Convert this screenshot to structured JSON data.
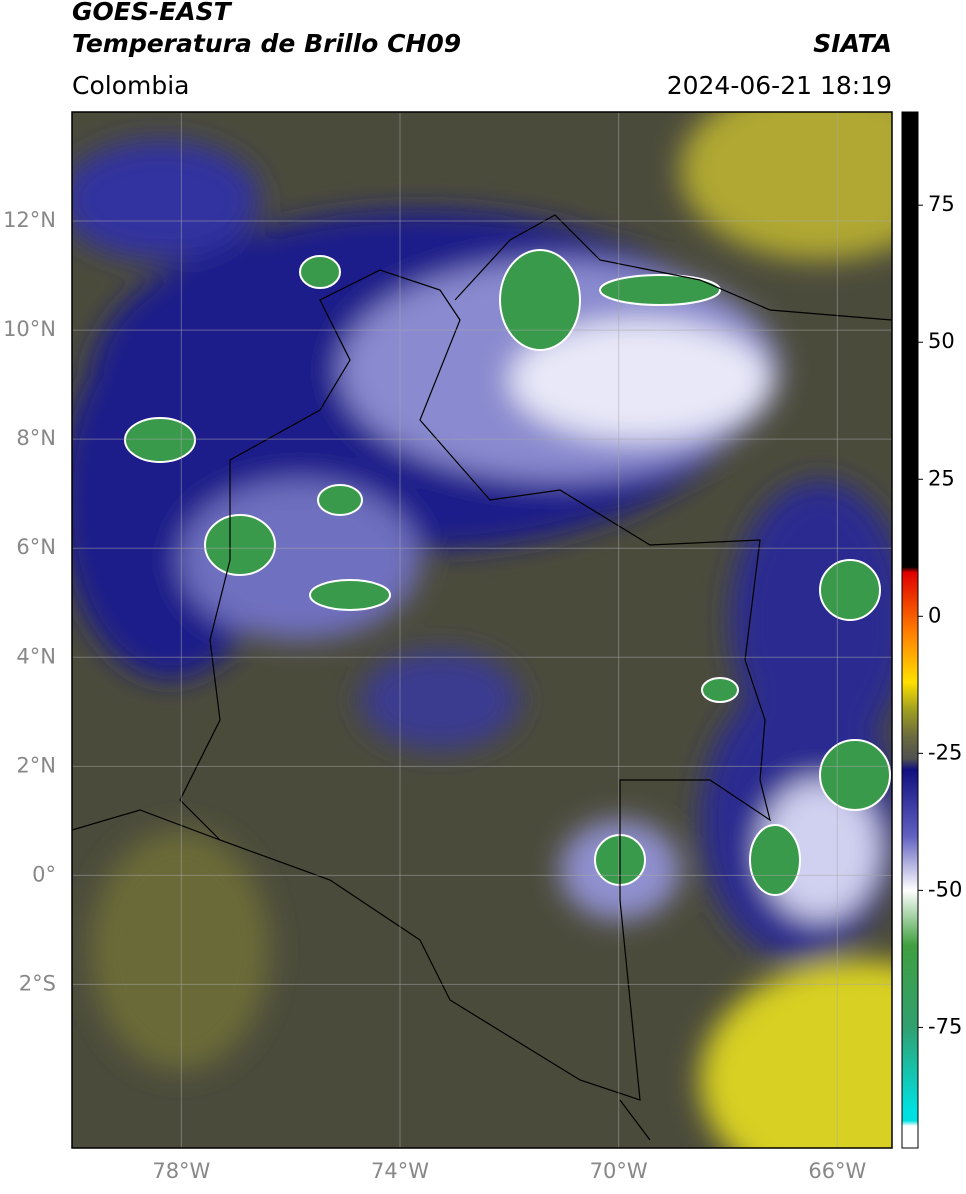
{
  "header": {
    "title": "GOES-EAST",
    "subtitle": "Temperatura de Brillo CH09",
    "source": "SIATA",
    "region": "Colombia",
    "datetime": "2024-06-21 18:19"
  },
  "map": {
    "xlim": [
      -80,
      -65
    ],
    "ylim": [
      -5,
      14
    ],
    "xticks": [
      {
        "value": -78,
        "label": "78°W"
      },
      {
        "value": -74,
        "label": "74°W"
      },
      {
        "value": -70,
        "label": "70°W"
      },
      {
        "value": -66,
        "label": "66°W"
      }
    ],
    "yticks": [
      {
        "value": 12,
        "label": "12°N"
      },
      {
        "value": 10,
        "label": "10°N"
      },
      {
        "value": 8,
        "label": "8°N"
      },
      {
        "value": 6,
        "label": "6°N"
      },
      {
        "value": 4,
        "label": "4°N"
      },
      {
        "value": 2,
        "label": "2°N"
      },
      {
        "value": 0,
        "label": "0°"
      },
      {
        "value": -2,
        "label": "2°S"
      }
    ],
    "grid": true
  },
  "colorbar": {
    "clim": [
      -97,
      92
    ],
    "ticks": [
      75,
      50,
      25,
      0,
      -25,
      -50,
      -75
    ],
    "colormap": [
      [
        92,
        "#000000"
      ],
      [
        9,
        "#000000"
      ],
      [
        8,
        "#e00000"
      ],
      [
        -3,
        "#ff8000"
      ],
      [
        -12,
        "#ffe000"
      ],
      [
        -17,
        "#a0a020"
      ],
      [
        -22,
        "#6a6a40"
      ],
      [
        -26,
        "#505050"
      ],
      [
        -28,
        "#101080"
      ],
      [
        -40,
        "#6060c0"
      ],
      [
        -50,
        "#ffffff"
      ],
      [
        -60,
        "#40a040"
      ],
      [
        -75,
        "#30a070"
      ],
      [
        -90,
        "#00e0e0"
      ],
      [
        -92,
        "#00e0e0"
      ],
      [
        -93,
        "#ffffff"
      ],
      [
        -97,
        "#ffffff"
      ]
    ]
  }
}
